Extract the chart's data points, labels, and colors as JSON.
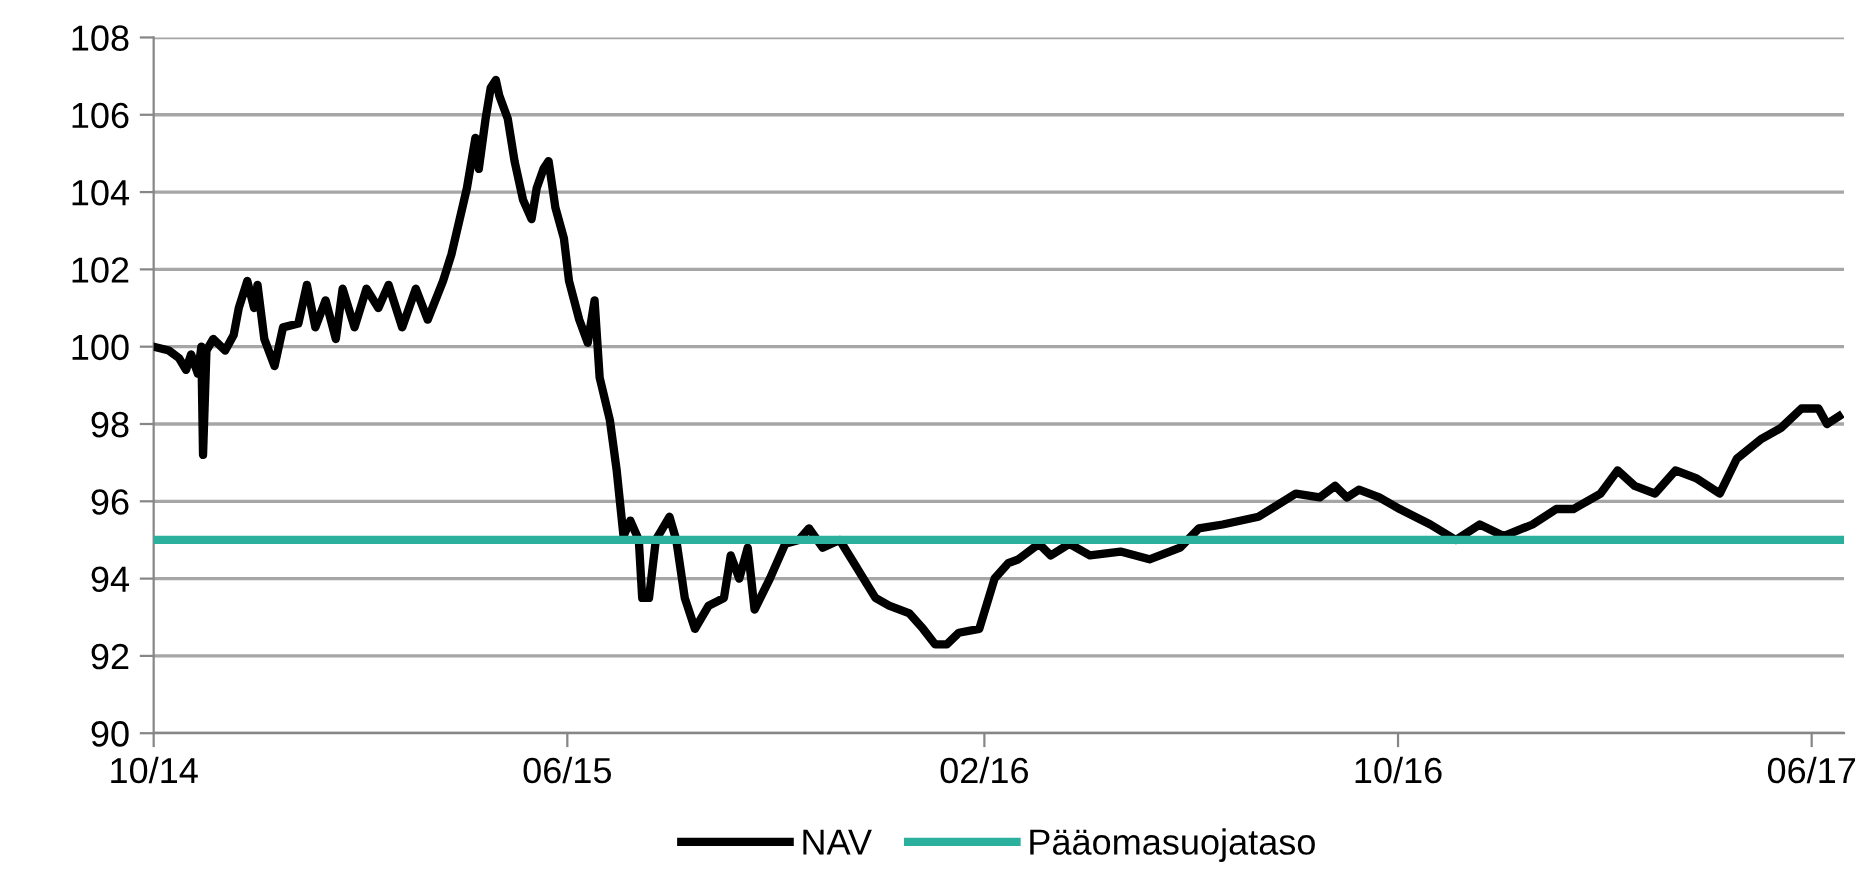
{
  "chart_data": {
    "type": "line",
    "xlim": [
      "2014-10-01",
      "2017-06-20"
    ],
    "ylim": [
      90,
      108
    ],
    "yticks": [
      90,
      92,
      94,
      96,
      98,
      100,
      102,
      104,
      106,
      108
    ],
    "xticks": [
      {
        "value": "2014-10-01",
        "label": "10/14"
      },
      {
        "value": "2015-06-01",
        "label": "06/15"
      },
      {
        "value": "2016-02-01",
        "label": "02/16"
      },
      {
        "value": "2016-10-01",
        "label": "10/16"
      },
      {
        "value": "2017-06-01",
        "label": "06/17"
      }
    ],
    "grid": "y",
    "legend": "bottom",
    "marker": "none",
    "line_style": "solid",
    "series": [
      {
        "name": "NAV",
        "color": "#000000",
        "x": [
          "2014-10-01",
          "2014-10-10",
          "2014-10-16",
          "2014-10-20",
          "2014-10-23",
          "2014-10-27",
          "2014-10-29",
          "2014-10-30",
          "2014-11-01",
          "2014-11-05",
          "2014-11-12",
          "2014-11-17",
          "2014-11-20",
          "2014-11-25",
          "2014-11-29",
          "2014-12-01",
          "2014-12-05",
          "2014-12-11",
          "2014-12-16",
          "2014-12-25",
          "2014-12-30",
          "2015-01-04",
          "2015-01-10",
          "2015-01-16",
          "2015-01-20",
          "2015-01-27",
          "2015-02-03",
          "2015-02-10",
          "2015-02-16",
          "2015-02-24",
          "2015-03-04",
          "2015-03-11",
          "2015-03-20",
          "2015-03-25",
          "2015-04-03",
          "2015-04-08",
          "2015-04-10",
          "2015-04-14",
          "2015-04-17",
          "2015-04-20",
          "2015-04-22",
          "2015-04-27",
          "2015-05-01",
          "2015-05-06",
          "2015-05-11",
          "2015-05-14",
          "2015-05-18",
          "2015-05-21",
          "2015-05-25",
          "2015-05-30",
          "2015-06-02",
          "2015-06-08",
          "2015-06-13",
          "2015-06-17",
          "2015-06-20",
          "2015-06-26",
          "2015-06-30",
          "2015-07-04",
          "2015-07-08",
          "2015-07-13",
          "2015-07-15",
          "2015-07-19",
          "2015-07-23",
          "2015-07-31",
          "2015-08-04",
          "2015-08-09",
          "2015-08-15",
          "2015-08-23",
          "2015-09-01",
          "2015-09-05",
          "2015-09-10",
          "2015-09-15",
          "2015-09-19",
          "2015-09-28",
          "2015-10-07",
          "2015-10-15",
          "2015-10-21",
          "2015-10-29",
          "2015-11-08",
          "2015-11-15",
          "2015-11-22",
          "2015-11-29",
          "2015-12-07",
          "2015-12-19",
          "2015-12-27",
          "2016-01-03",
          "2016-01-10",
          "2016-01-17",
          "2016-01-29",
          "2016-02-07",
          "2016-02-15",
          "2016-02-21",
          "2016-03-04",
          "2016-03-11",
          "2016-03-22",
          "2016-04-03",
          "2016-04-21",
          "2016-05-08",
          "2016-05-26",
          "2016-06-06",
          "2016-06-20",
          "2016-07-11",
          "2016-08-02",
          "2016-08-16",
          "2016-08-25",
          "2016-09-01",
          "2016-09-08",
          "2016-09-20",
          "2016-10-02",
          "2016-10-20",
          "2016-11-04",
          "2016-11-18",
          "2016-12-02",
          "2016-12-19",
          "2017-01-02",
          "2017-01-12",
          "2017-01-28",
          "2017-02-07",
          "2017-02-17",
          "2017-03-01",
          "2017-03-13",
          "2017-03-25",
          "2017-04-08",
          "2017-04-18",
          "2017-05-02",
          "2017-05-14",
          "2017-05-26",
          "2017-06-05",
          "2017-06-10",
          "2017-06-17"
        ],
        "values": [
          100.0,
          99.9,
          99.7,
          99.4,
          99.8,
          99.3,
          100.0,
          97.2,
          99.9,
          100.2,
          99.9,
          100.3,
          101.0,
          101.7,
          101.0,
          101.6,
          100.2,
          99.5,
          100.5,
          100.6,
          101.6,
          100.5,
          101.2,
          100.2,
          101.5,
          100.5,
          101.5,
          101.0,
          101.6,
          100.5,
          101.5,
          100.7,
          101.7,
          102.4,
          104.1,
          105.4,
          104.6,
          105.9,
          106.7,
          106.9,
          106.5,
          105.9,
          104.8,
          103.8,
          103.3,
          104.1,
          104.6,
          104.8,
          103.6,
          102.8,
          101.7,
          100.7,
          100.1,
          101.2,
          99.2,
          98.1,
          96.8,
          95.1,
          95.5,
          95.0,
          93.5,
          93.5,
          95.0,
          95.6,
          95.0,
          93.5,
          92.7,
          93.3,
          93.5,
          94.6,
          94.0,
          94.8,
          93.2,
          94.0,
          94.9,
          95.0,
          95.3,
          94.8,
          95.0,
          94.5,
          94.0,
          93.5,
          93.3,
          93.1,
          92.7,
          92.3,
          92.3,
          92.6,
          92.7,
          94.0,
          94.4,
          94.5,
          94.9,
          94.6,
          94.9,
          94.6,
          94.7,
          94.5,
          94.8,
          95.3,
          95.4,
          95.6,
          96.2,
          96.1,
          96.4,
          96.1,
          96.3,
          96.1,
          95.8,
          95.4,
          95.0,
          95.4,
          95.1,
          95.4,
          95.8,
          95.8,
          96.2,
          96.8,
          96.4,
          96.2,
          96.8,
          96.6,
          96.2,
          97.1,
          97.6,
          97.9,
          98.4,
          98.4,
          98.0,
          98.2
        ]
      },
      {
        "name": "Pääomasuojataso",
        "color": "#2ab09c",
        "x": [
          "2014-10-01",
          "2017-06-20"
        ],
        "values": [
          95,
          95
        ]
      }
    ]
  }
}
